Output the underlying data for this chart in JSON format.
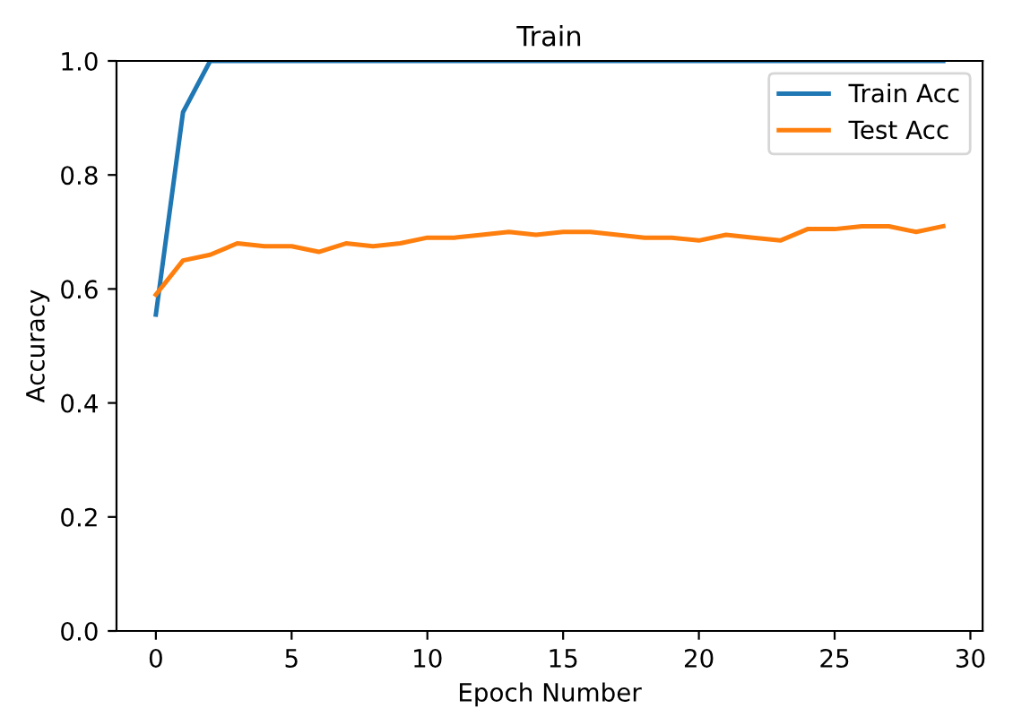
{
  "chart_data": {
    "type": "line",
    "title": "Train",
    "xlabel": "Epoch Number",
    "ylabel": "Accuracy",
    "x": [
      0,
      1,
      2,
      3,
      4,
      5,
      6,
      7,
      8,
      9,
      10,
      11,
      12,
      13,
      14,
      15,
      16,
      17,
      18,
      19,
      20,
      21,
      22,
      23,
      24,
      25,
      26,
      27,
      28,
      29
    ],
    "series": [
      {
        "name": "Train Acc",
        "color": "#1f77b4",
        "values": [
          0.555,
          0.91,
          1.0,
          1.0,
          1.0,
          1.0,
          1.0,
          1.0,
          1.0,
          1.0,
          1.0,
          1.0,
          1.0,
          1.0,
          1.0,
          1.0,
          1.0,
          1.0,
          1.0,
          1.0,
          1.0,
          1.0,
          1.0,
          1.0,
          1.0,
          1.0,
          1.0,
          1.0,
          1.0,
          1.0
        ]
      },
      {
        "name": "Test Acc",
        "color": "#ff7f0e",
        "values": [
          0.59,
          0.65,
          0.66,
          0.68,
          0.675,
          0.675,
          0.665,
          0.68,
          0.675,
          0.68,
          0.69,
          0.69,
          0.695,
          0.7,
          0.695,
          0.7,
          0.7,
          0.695,
          0.69,
          0.69,
          0.685,
          0.695,
          0.69,
          0.685,
          0.705,
          0.705,
          0.71,
          0.71,
          0.7,
          0.71
        ]
      }
    ],
    "xlim": [
      -1.45,
      30.45
    ],
    "xticks": [
      0,
      5,
      10,
      15,
      20,
      25,
      30
    ],
    "ylim": [
      0,
      1.0
    ],
    "yticks": [
      {
        "value": 0,
        "label": "0.0"
      },
      {
        "value": 0.2,
        "label": "0.2"
      },
      {
        "value": 0.4,
        "label": "0.4"
      },
      {
        "value": 0.6,
        "label": "0.6"
      },
      {
        "value": 0.8,
        "label": "0.8"
      },
      {
        "value": 1.0,
        "label": "1.0"
      }
    ],
    "legend": "top right",
    "grid": false
  }
}
